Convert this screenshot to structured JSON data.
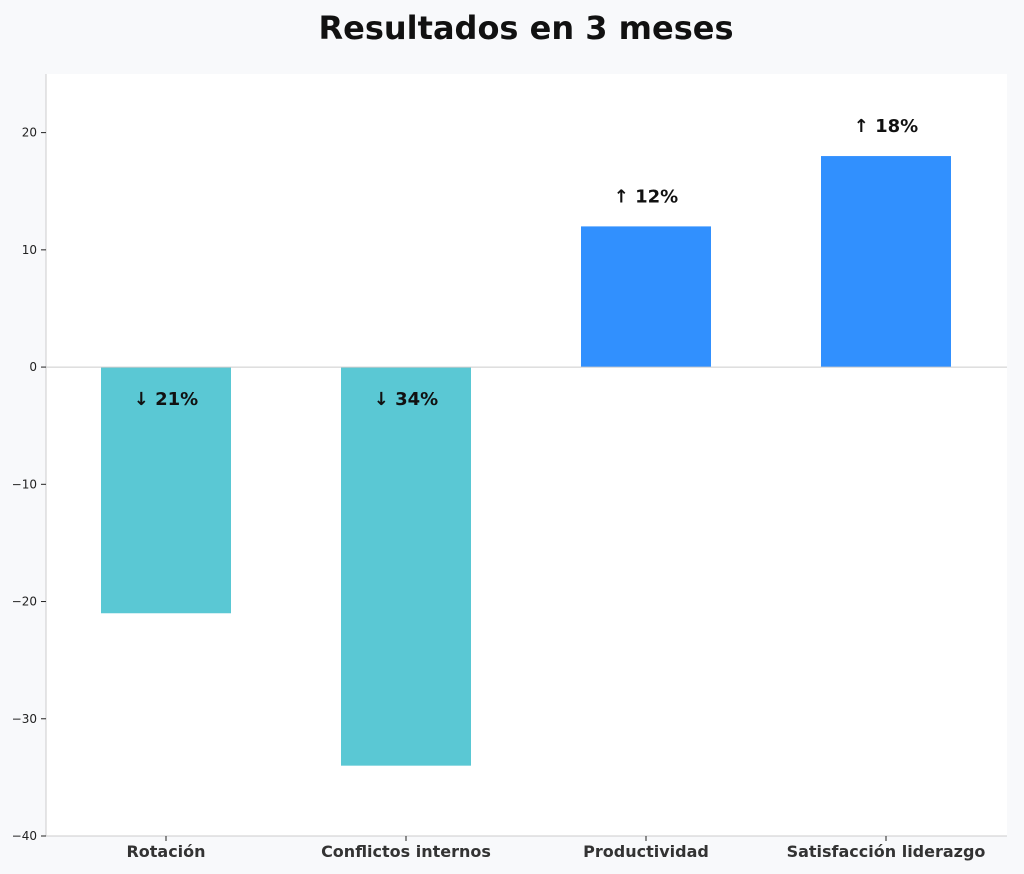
{
  "chart_data": {
    "type": "bar",
    "title": "Resultados en 3 meses",
    "xlabel": "",
    "ylabel": "",
    "categories": [
      "Rotación",
      "Conflictos internos",
      "Productividad",
      "Satisfacción liderazgo"
    ],
    "values": [
      -21,
      -34,
      12,
      18
    ],
    "data_labels": [
      "↓ 21%",
      "↓ 34%",
      "↑ 12%",
      "↑ 18%"
    ],
    "ylim": [
      -40,
      25
    ],
    "yticks": [
      20,
      10,
      0,
      -10,
      -20,
      -30,
      -40
    ],
    "ytick_labels": [
      "20",
      "10",
      "0",
      "−10",
      "−20",
      "−30",
      "−40"
    ],
    "grid": false,
    "colors": {
      "negative": "#5ac8d4",
      "positive": "#3190fe",
      "background": "#f8f9fb",
      "plot_background": "#ffffff",
      "zero_line": "#cccccc",
      "axis": "#cccccc"
    }
  }
}
